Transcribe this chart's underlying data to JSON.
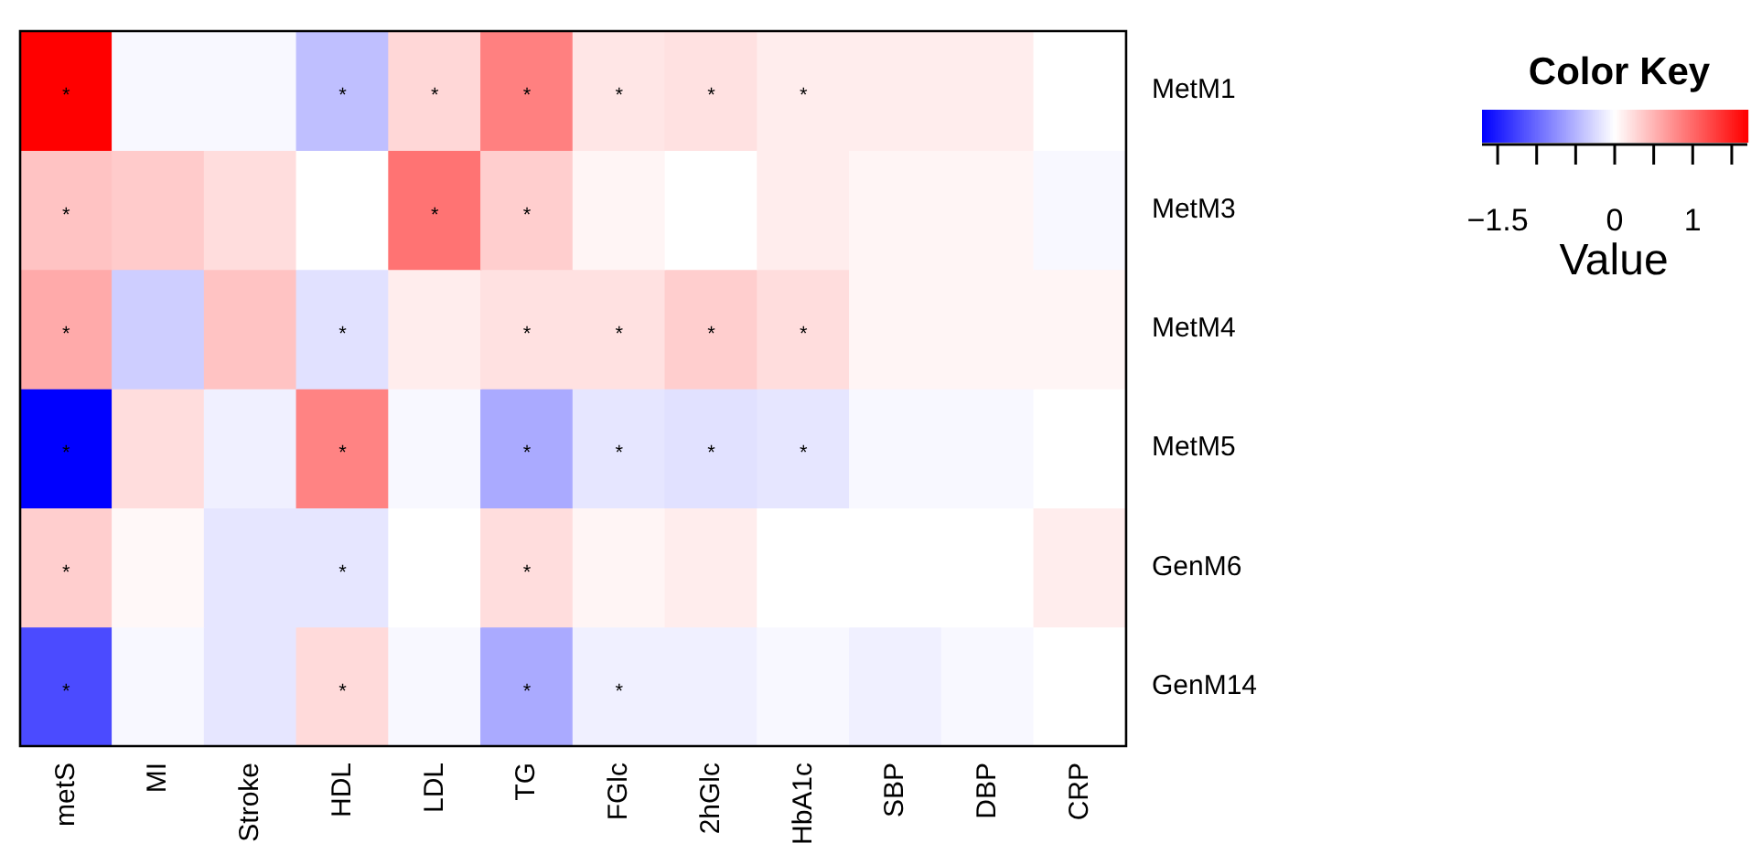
{
  "chart_data": {
    "type": "heatmap",
    "title": "Color Key",
    "clabel": "Value",
    "categories": [
      "metS",
      "MI",
      "Stroke",
      "HDL",
      "LDL",
      "TG",
      "FGlc",
      "2hGlc",
      "HbA1c",
      "SBP",
      "DBP",
      "CRP"
    ],
    "y_categories": [
      "MetM1",
      "MetM3",
      "MetM4",
      "MetM5",
      "GenM6",
      "GenM14"
    ],
    "cells": [
      [
        1.7,
        -0.05,
        -0.05,
        -0.43,
        0.27,
        0.85,
        0.17,
        0.2,
        0.12,
        0.12,
        0.12,
        0
      ],
      [
        0.4,
        0.35,
        0.23,
        0,
        0.93,
        0.33,
        0.07,
        0,
        0.12,
        0.07,
        0.07,
        -0.05
      ],
      [
        0.57,
        -0.33,
        0.4,
        -0.2,
        0.12,
        0.2,
        0.2,
        0.33,
        0.23,
        0.07,
        0.07,
        0.07
      ],
      [
        -1.7,
        0.23,
        -0.1,
        0.83,
        -0.05,
        -0.57,
        -0.17,
        -0.2,
        -0.17,
        -0.05,
        -0.05,
        0
      ],
      [
        0.33,
        0.05,
        -0.17,
        -0.17,
        0,
        0.23,
        0.07,
        0.12,
        0,
        0,
        0,
        0.12
      ],
      [
        -1.2,
        -0.05,
        -0.17,
        0.25,
        -0.05,
        -0.57,
        -0.1,
        -0.1,
        -0.05,
        -0.1,
        -0.05,
        0
      ]
    ],
    "cell_labels": [
      [
        "*",
        null,
        null,
        "*",
        "*",
        "*",
        "*",
        "*",
        "*",
        null,
        null,
        null
      ],
      [
        "*",
        null,
        null,
        null,
        "*",
        "*",
        null,
        null,
        null,
        null,
        null,
        null
      ],
      [
        "*",
        null,
        null,
        "*",
        null,
        "*",
        "*",
        "*",
        "*",
        null,
        null,
        null
      ],
      [
        "*",
        null,
        null,
        "*",
        null,
        "*",
        "*",
        "*",
        "*",
        null,
        null,
        null
      ],
      [
        "*",
        null,
        null,
        "*",
        null,
        "*",
        null,
        null,
        null,
        null,
        null,
        null
      ],
      [
        "*",
        null,
        null,
        "*",
        null,
        "*",
        "*",
        null,
        null,
        null,
        null,
        null
      ]
    ],
    "clim": [
      -1.7,
      1.7
    ],
    "cticks": [
      -1.5,
      {
        "value": -1,
        "label": null
      },
      {
        "value": -0.5,
        "label": null
      },
      0,
      {
        "value": 0.5,
        "label": null
      },
      1,
      {
        "value": 1.5,
        "label": null
      }
    ]
  }
}
